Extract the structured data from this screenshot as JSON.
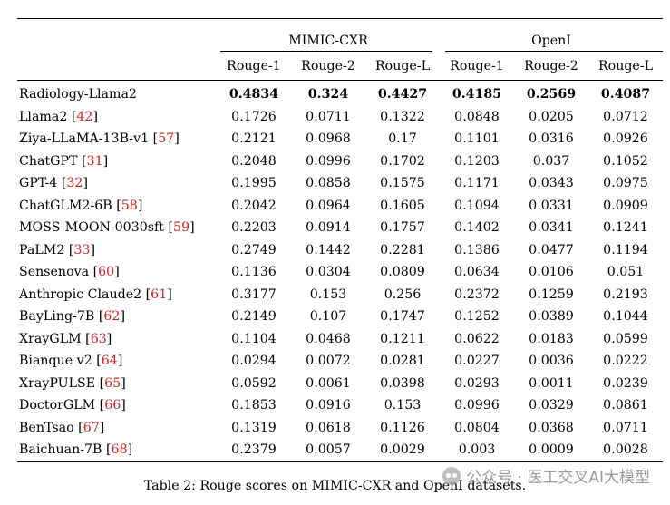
{
  "table": {
    "groups": {
      "mimic": "MIMIC-CXR",
      "openi": "OpenI"
    },
    "metrics": [
      "Rouge-1",
      "Rouge-2",
      "Rouge-L",
      "Rouge-1",
      "Rouge-2",
      "Rouge-L"
    ],
    "rows": [
      {
        "model": "Radiology-Llama2",
        "ref": "",
        "bold": true,
        "values": [
          "0.4834",
          "0.324",
          "0.4427",
          "0.4185",
          "0.2569",
          "0.4087"
        ]
      },
      {
        "model": "Llama2",
        "ref": "42",
        "values": [
          "0.1726",
          "0.0711",
          "0.1322",
          "0.0848",
          "0.0205",
          "0.0712"
        ]
      },
      {
        "model": "Ziya-LLaMA-13B-v1",
        "ref": "57",
        "values": [
          "0.2121",
          "0.0968",
          "0.17",
          "0.1101",
          "0.0316",
          "0.0926"
        ]
      },
      {
        "model": "ChatGPT",
        "ref": "31",
        "values": [
          "0.2048",
          "0.0996",
          "0.1702",
          "0.1203",
          "0.037",
          "0.1052"
        ]
      },
      {
        "model": "GPT-4",
        "ref": "32",
        "values": [
          "0.1995",
          "0.0858",
          "0.1575",
          "0.1171",
          "0.0343",
          "0.0975"
        ]
      },
      {
        "model": "ChatGLM2-6B",
        "ref": "58",
        "values": [
          "0.2042",
          "0.0964",
          "0.1605",
          "0.1094",
          "0.0331",
          "0.0909"
        ]
      },
      {
        "model": "MOSS-MOON-0030sft",
        "ref": "59",
        "values": [
          "0.2203",
          "0.0914",
          "0.1757",
          "0.1402",
          "0.0341",
          "0.1241"
        ]
      },
      {
        "model": "PaLM2",
        "ref": "33",
        "values": [
          "0.2749",
          "0.1442",
          "0.2281",
          "0.1386",
          "0.0477",
          "0.1194"
        ]
      },
      {
        "model": "Sensenova",
        "ref": "60",
        "values": [
          "0.1136",
          "0.0304",
          "0.0809",
          "0.0634",
          "0.0106",
          "0.051"
        ]
      },
      {
        "model": "Anthropic Claude2",
        "ref": "61",
        "values": [
          "0.3177",
          "0.153",
          "0.256",
          "0.2372",
          "0.1259",
          "0.2193"
        ]
      },
      {
        "model": "BayLing-7B",
        "ref": "62",
        "values": [
          "0.2149",
          "0.107",
          "0.1747",
          "0.1252",
          "0.0389",
          "0.1044"
        ]
      },
      {
        "model": "XrayGLM",
        "ref": "63",
        "values": [
          "0.1104",
          "0.0468",
          "0.1211",
          "0.0622",
          "0.0183",
          "0.0599"
        ]
      },
      {
        "model": "Bianque v2",
        "ref": "64",
        "values": [
          "0.0294",
          "0.0072",
          "0.0281",
          "0.0227",
          "0.0036",
          "0.0222"
        ]
      },
      {
        "model": "XrayPULSE",
        "ref": "65",
        "values": [
          "0.0592",
          "0.0061",
          "0.0398",
          "0.0293",
          "0.0011",
          "0.0239"
        ]
      },
      {
        "model": "DoctorGLM",
        "ref": "66",
        "values": [
          "0.1853",
          "0.0916",
          "0.153",
          "0.0996",
          "0.0329",
          "0.0861"
        ]
      },
      {
        "model": "BenTsao",
        "ref": "67",
        "values": [
          "0.1319",
          "0.0618",
          "0.1126",
          "0.0804",
          "0.0368",
          "0.0711"
        ]
      },
      {
        "model": "Baichuan-7B",
        "ref": "68",
        "values": [
          "0.2379",
          "0.0057",
          "0.0029",
          "0.003",
          "0.0009",
          "0.0028"
        ]
      }
    ]
  },
  "caption": "Table 2: Rouge scores on MIMIC-CXR and OpenI datasets.",
  "watermark": "公众号 · 医工交叉AI大模型",
  "colors": {
    "reference_link": "#d6201c"
  }
}
